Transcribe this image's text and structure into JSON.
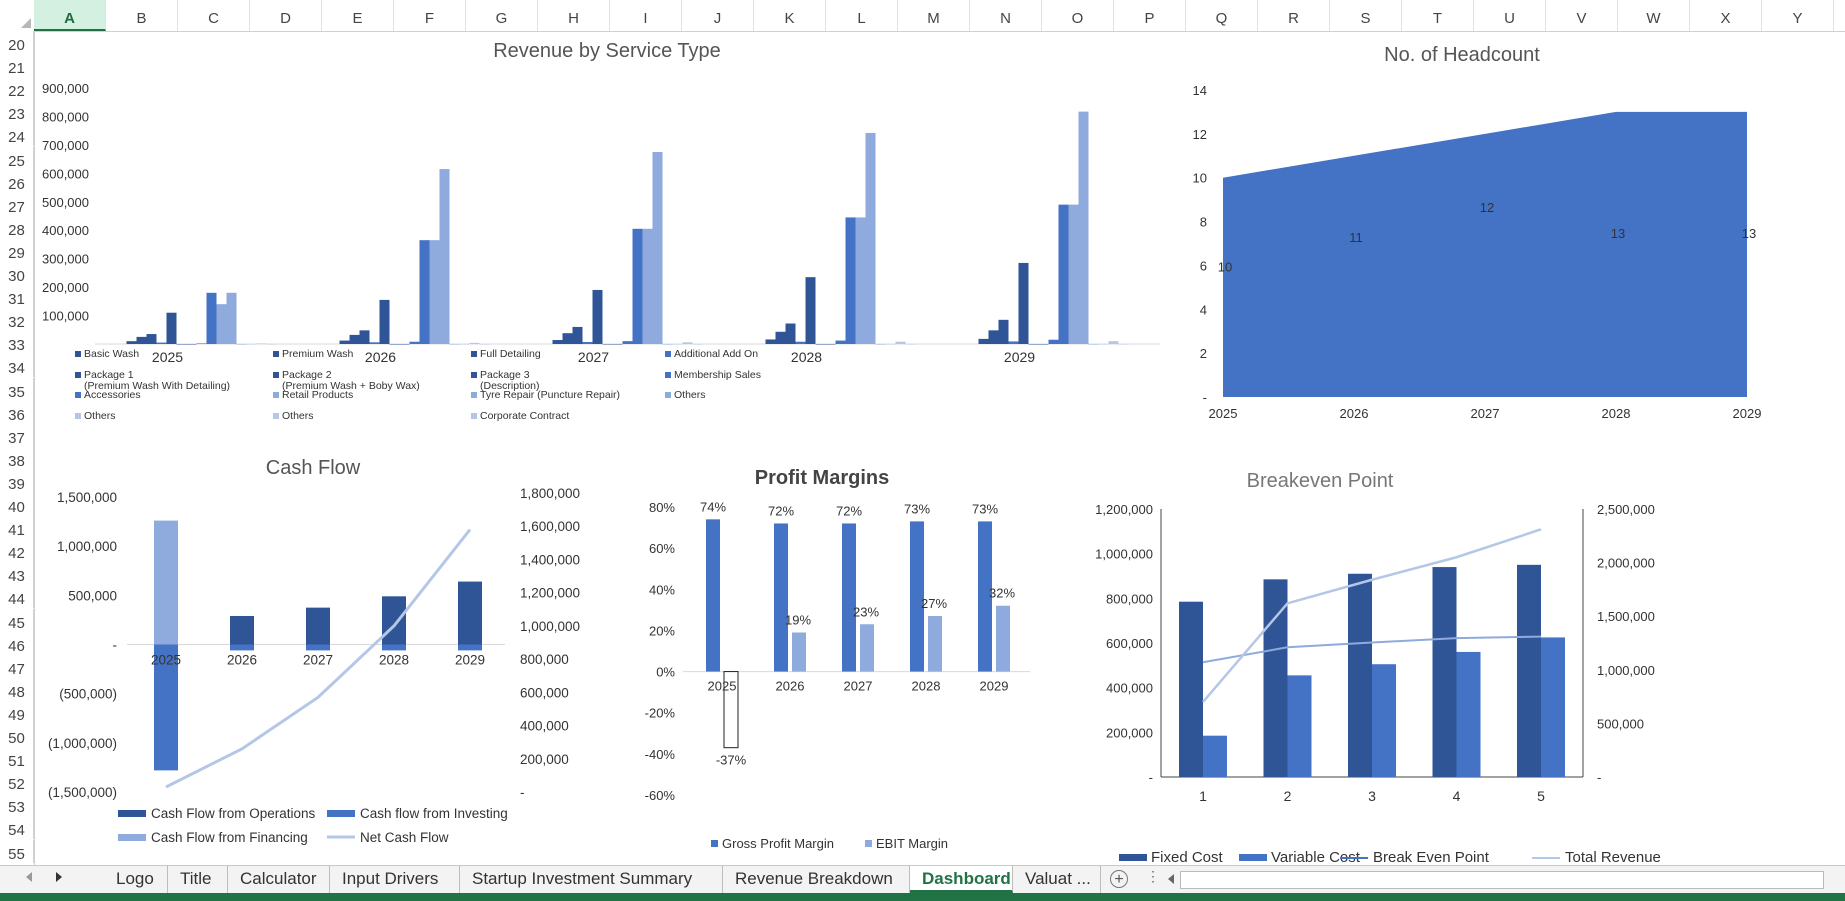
{
  "columns": [
    "A",
    "B",
    "C",
    "D",
    "E",
    "F",
    "G",
    "H",
    "I",
    "J",
    "K",
    "L",
    "M",
    "N",
    "O",
    "P",
    "Q",
    "R",
    "S",
    "T",
    "U",
    "V",
    "W",
    "X",
    "Y"
  ],
  "selected_column": "A",
  "rows": [
    "20",
    "21",
    "22",
    "23",
    "24",
    "25",
    "26",
    "27",
    "28",
    "29",
    "30",
    "31",
    "32",
    "33",
    "34",
    "35",
    "36",
    "37",
    "38",
    "39",
    "40",
    "41",
    "42",
    "43",
    "44",
    "45",
    "46",
    "47",
    "48",
    "49",
    "50",
    "51",
    "52",
    "53",
    "54",
    "55"
  ],
  "tabs": [
    "Logo",
    "Title",
    "Calculator",
    "Input Drivers",
    "Startup Investment Summary",
    "Revenue Breakdown",
    "Dashboard",
    "Valuat ..."
  ],
  "active_tab": "Dashboard",
  "colors": {
    "dark": "#2f5597",
    "mid": "#4472c4",
    "light": "#8faadc",
    "lighter": "#b4c7e7",
    "excel_green": "#217346"
  },
  "chart_data": [
    {
      "type": "bar",
      "title": "Revenue by Service Type",
      "categories": [
        "2025",
        "2026",
        "2027",
        "2028",
        "2029"
      ],
      "ylim": [
        0,
        900000
      ],
      "yticks": [
        "",
        "100,000",
        "200,000",
        "300,000",
        "400,000",
        "500,000",
        "600,000",
        "700,000",
        "800,000",
        "900,000"
      ],
      "legend_placement": "bottom",
      "legend": [
        "Basic Wash",
        "Premium Wash",
        "Full Detailing",
        "Additional Add On",
        "Package 1 (Premium Wash With Detailing)",
        "Package 2 (Premium Wash + Boby Wax)",
        "Package 3 (Description)",
        "Membership Sales",
        "Accessories",
        "Retail Products",
        "Tyre Repair (Puncture Repair)",
        "Others",
        "Others",
        "Others",
        "Corporate Contract"
      ],
      "series": [
        {
          "name": "Basic Wash",
          "values": [
            10000,
            12000,
            14000,
            16000,
            18000
          ]
        },
        {
          "name": "Premium Wash",
          "values": [
            25000,
            32000,
            38000,
            43000,
            48000
          ]
        },
        {
          "name": "Full Detailing",
          "values": [
            35000,
            48000,
            60000,
            72000,
            85000
          ]
        },
        {
          "name": "Additional Add On",
          "values": [
            5000,
            6000,
            7000,
            8000,
            9000
          ]
        },
        {
          "name": "Package 1 (Premium Wash With Detailing)",
          "values": [
            110000,
            155000,
            190000,
            235000,
            285000
          ]
        },
        {
          "name": "Package 2 (Premium Wash + Boby Wax)",
          "values": [
            0,
            0,
            0,
            0,
            0
          ]
        },
        {
          "name": "Package 3 (Description)",
          "values": [
            0,
            0,
            0,
            0,
            0
          ]
        },
        {
          "name": "Membership Sales",
          "values": [
            2000,
            8000,
            10000,
            12000,
            15000
          ]
        },
        {
          "name": "Accessories",
          "values": [
            180000,
            365000,
            405000,
            445000,
            490000
          ]
        },
        {
          "name": "Retail Products",
          "values": [
            140000,
            365000,
            405000,
            445000,
            490000
          ]
        },
        {
          "name": "Tyre Repair (Puncture Repair)",
          "values": [
            180000,
            615000,
            675000,
            742000,
            817000
          ]
        },
        {
          "name": "Others",
          "values": [
            0,
            0,
            0,
            0,
            0
          ]
        },
        {
          "name": "Others",
          "values": [
            0,
            0,
            0,
            0,
            0
          ]
        },
        {
          "name": "Others",
          "values": [
            2000,
            4000,
            6000,
            8000,
            10000
          ]
        },
        {
          "name": "Corporate Contract",
          "values": [
            0,
            0,
            0,
            0,
            0
          ]
        }
      ]
    },
    {
      "type": "area",
      "title": "No. of Headcount",
      "categories": [
        "2025",
        "2026",
        "2027",
        "2028",
        "2029"
      ],
      "values": [
        10,
        11,
        12,
        13,
        13
      ],
      "ylim": [
        0,
        14
      ],
      "yticks": [
        "-",
        "2",
        "4",
        "6",
        "8",
        "10",
        "12",
        "14"
      ]
    },
    {
      "type": "bar",
      "title": "Cash Flow",
      "categories": [
        "2025",
        "2026",
        "2027",
        "2028",
        "2029"
      ],
      "ylim": [
        -1500000,
        1500000
      ],
      "yticks": [
        "(1,500,000)",
        "(1,000,000)",
        "(500,000)",
        "-",
        "500,000",
        "1,000,000",
        "1,500,000"
      ],
      "y2lim": [
        0,
        1800000
      ],
      "y2ticks": [
        "-",
        "200,000",
        "400,000",
        "600,000",
        "800,000",
        "1,000,000",
        "1,200,000",
        "1,400,000",
        "1,600,000",
        "1,800,000"
      ],
      "legend": [
        "Cash Flow from Operations",
        "Cash flow from Investing",
        "Cash Flow from Financing",
        "Net Cash Flow"
      ],
      "series": [
        {
          "name": "Cash Flow from Operations",
          "values": [
            0,
            290000,
            375000,
            490000,
            640000
          ]
        },
        {
          "name": "Cash flow from Investing",
          "values": [
            -1280000,
            -60000,
            -60000,
            -60000,
            -60000
          ]
        },
        {
          "name": "Cash Flow from Financing",
          "values": [
            1260000,
            0,
            0,
            0,
            0
          ]
        },
        {
          "name": "Net Cash Flow",
          "axis": "secondary",
          "values": [
            30000,
            260000,
            570000,
            1000000,
            1580000
          ]
        }
      ]
    },
    {
      "type": "bar",
      "title": "Profit Margins",
      "categories": [
        "2025",
        "2026",
        "2027",
        "2028",
        "2029"
      ],
      "ylim": [
        -60,
        80
      ],
      "yticks": [
        "-60%",
        "-40%",
        "-20%",
        "0%",
        "20%",
        "40%",
        "60%",
        "80%"
      ],
      "legend": [
        "Gross Profit Margin",
        "EBIT Margin"
      ],
      "series": [
        {
          "name": "Gross Profit Margin",
          "values": [
            74,
            72,
            72,
            73,
            73
          ],
          "labels": [
            "74%",
            "72%",
            "72%",
            "73%",
            "73%"
          ]
        },
        {
          "name": "EBIT Margin",
          "values": [
            -37,
            19,
            23,
            27,
            32
          ],
          "labels": [
            "-37%",
            "19%",
            "23%",
            "27%",
            "32%"
          ]
        }
      ]
    },
    {
      "type": "bar",
      "title": "Breakeven Point",
      "categories": [
        "1",
        "2",
        "3",
        "4",
        "5"
      ],
      "ylim": [
        0,
        1200000
      ],
      "yticks": [
        "-",
        "200,000",
        "400,000",
        "600,000",
        "800,000",
        "1,000,000",
        "1,200,000"
      ],
      "y2lim": [
        0,
        2500000
      ],
      "y2ticks": [
        "-",
        "500,000",
        "1,000,000",
        "1,500,000",
        "2,000,000",
        "2,500,000"
      ],
      "legend": [
        "Fixed Cost",
        "Variable Cost",
        "Break Even Point",
        "Total Revenue"
      ],
      "series": [
        {
          "name": "Fixed Cost",
          "values": [
            785000,
            885000,
            910000,
            940000,
            950000
          ]
        },
        {
          "name": "Variable Cost",
          "values": [
            185000,
            455000,
            505000,
            560000,
            625000
          ]
        },
        {
          "name": "Break Even Point",
          "axis": "secondary",
          "values": [
            1070000,
            1210000,
            1255000,
            1295000,
            1310000
          ]
        },
        {
          "name": "Total Revenue",
          "axis": "secondary",
          "values": [
            700000,
            1620000,
            1840000,
            2050000,
            2310000
          ]
        }
      ]
    }
  ]
}
